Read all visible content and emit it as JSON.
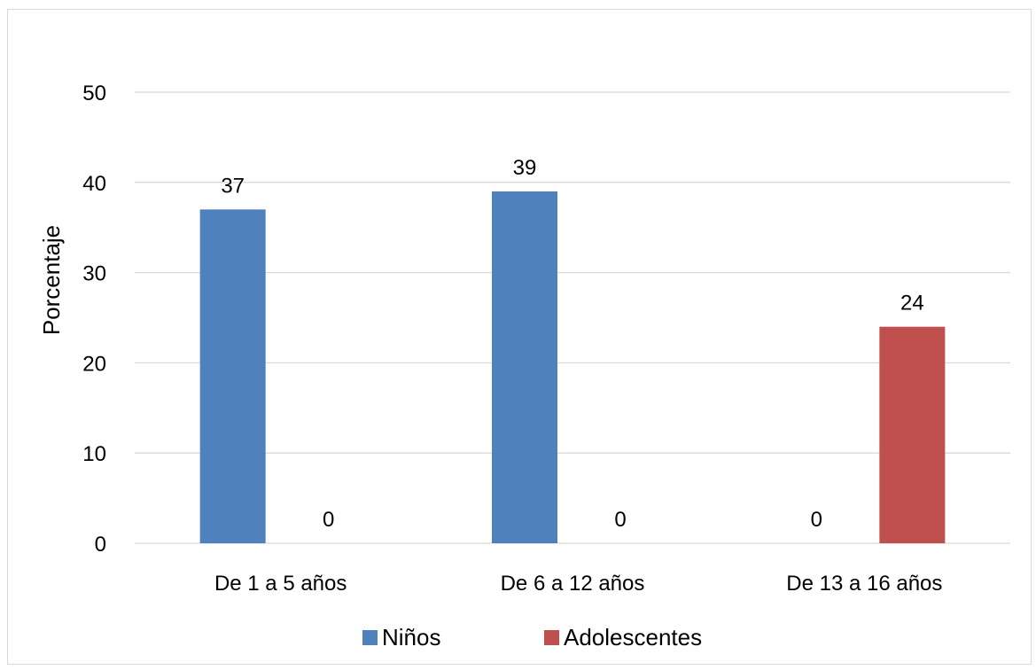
{
  "chart_data": {
    "type": "bar",
    "title": "",
    "xlabel": "",
    "ylabel": "Porcentaje",
    "ylim": [
      0,
      50
    ],
    "yticks": [
      0,
      10,
      20,
      30,
      40,
      50
    ],
    "grid": true,
    "legend_position": "bottom",
    "categories": [
      "De 1 a 5 años",
      "De 6 a 12 años",
      "De 13 a 16 años"
    ],
    "series": [
      {
        "name": "Niños",
        "color": "#4f81bd",
        "values": [
          37,
          39,
          0
        ]
      },
      {
        "name": "Adolescentes",
        "color": "#c0504d",
        "values": [
          0,
          0,
          24
        ]
      }
    ],
    "data_labels": true
  }
}
